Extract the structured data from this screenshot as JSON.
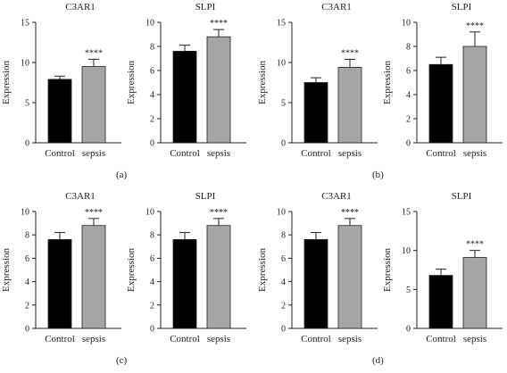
{
  "panel_labels": [
    "(a)",
    "(b)",
    "(c)",
    "(d)"
  ],
  "chart_data": [
    {
      "type": "bar",
      "panel": "(a)",
      "title": "C3AR1",
      "ylabel": "Expression",
      "ylim": [
        0,
        15
      ],
      "yticks": [
        0,
        5,
        10,
        15
      ],
      "categories": [
        "Control",
        "sepsis"
      ],
      "values": [
        7.9,
        9.5
      ],
      "errors": [
        0.4,
        0.9
      ],
      "significance": "****",
      "colors": [
        "#000000",
        "#a6a6a6"
      ]
    },
    {
      "type": "bar",
      "panel": "(a)",
      "title": "SLPI",
      "ylabel": "Expression",
      "ylim": [
        0,
        10
      ],
      "yticks": [
        0,
        2,
        4,
        6,
        8,
        10
      ],
      "categories": [
        "Control",
        "sepsis"
      ],
      "values": [
        7.6,
        8.8
      ],
      "errors": [
        0.5,
        0.6
      ],
      "significance": "****",
      "colors": [
        "#000000",
        "#a6a6a6"
      ]
    },
    {
      "type": "bar",
      "panel": "(b)",
      "title": "C3AR1",
      "ylabel": "Expression",
      "ylim": [
        0,
        15
      ],
      "yticks": [
        0,
        5,
        10,
        15
      ],
      "categories": [
        "Control",
        "sepsis"
      ],
      "values": [
        7.5,
        9.4
      ],
      "errors": [
        0.6,
        1.0
      ],
      "significance": "****",
      "colors": [
        "#000000",
        "#a6a6a6"
      ]
    },
    {
      "type": "bar",
      "panel": "(b)",
      "title": "SLPI",
      "ylabel": "Expression",
      "ylim": [
        0,
        10
      ],
      "yticks": [
        0,
        2,
        4,
        6,
        8,
        10
      ],
      "categories": [
        "Control",
        "sepsis"
      ],
      "values": [
        6.5,
        8.0
      ],
      "errors": [
        0.6,
        1.2
      ],
      "significance": "****",
      "colors": [
        "#000000",
        "#a6a6a6"
      ]
    },
    {
      "type": "bar",
      "panel": "(c)",
      "title": "C3AR1",
      "ylabel": "Expression",
      "ylim": [
        0,
        10
      ],
      "yticks": [
        0,
        2,
        4,
        6,
        8,
        10
      ],
      "categories": [
        "Control",
        "sepsis"
      ],
      "values": [
        7.6,
        8.8
      ],
      "errors": [
        0.6,
        0.6
      ],
      "significance": "****",
      "colors": [
        "#000000",
        "#a6a6a6"
      ]
    },
    {
      "type": "bar",
      "panel": "(c)",
      "title": "SLPI",
      "ylabel": "Expression",
      "ylim": [
        0,
        10
      ],
      "yticks": [
        0,
        2,
        4,
        6,
        8,
        10
      ],
      "categories": [
        "Control",
        "sepsis"
      ],
      "values": [
        7.6,
        8.8
      ],
      "errors": [
        0.6,
        0.6
      ],
      "significance": "****",
      "colors": [
        "#000000",
        "#a6a6a6"
      ]
    },
    {
      "type": "bar",
      "panel": "(d)",
      "title": "C3AR1",
      "ylabel": "Expression",
      "ylim": [
        0,
        10
      ],
      "yticks": [
        0,
        2,
        4,
        6,
        8,
        10
      ],
      "categories": [
        "Control",
        "sepsis"
      ],
      "values": [
        7.6,
        8.8
      ],
      "errors": [
        0.6,
        0.6
      ],
      "significance": "****",
      "colors": [
        "#000000",
        "#a6a6a6"
      ]
    },
    {
      "type": "bar",
      "panel": "(d)",
      "title": "SLPI",
      "ylabel": "Expression",
      "ylim": [
        0,
        15
      ],
      "yticks": [
        0,
        5,
        10,
        15
      ],
      "categories": [
        "Control",
        "sepsis"
      ],
      "values": [
        6.8,
        9.1
      ],
      "errors": [
        0.8,
        0.9
      ],
      "significance": "****",
      "colors": [
        "#000000",
        "#a6a6a6"
      ]
    }
  ]
}
